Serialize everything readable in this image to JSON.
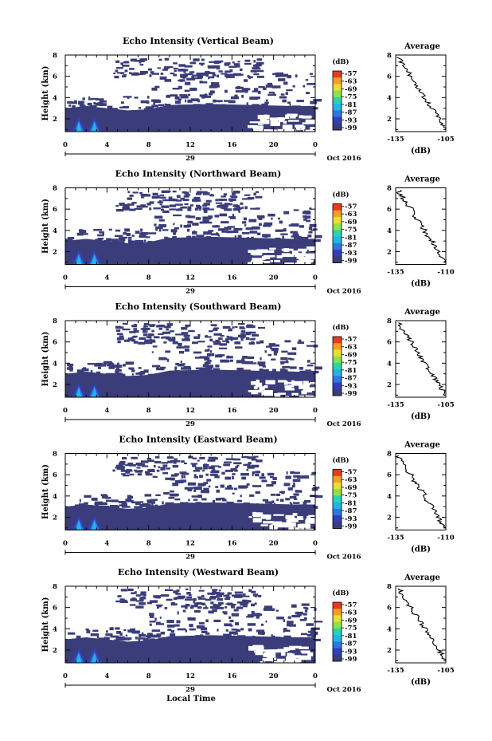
{
  "figure": {
    "xlabel": "Local Time",
    "date_label": "Oct 2016",
    "day_label": "29"
  },
  "colors": {
    "background_echo": "#3a3d7a",
    "scale": [
      "#3a3d7a",
      "#3140b8",
      "#2f78e0",
      "#1fb8e6",
      "#27d6b0",
      "#8fe04a",
      "#e8e030",
      "#f5a020",
      "#e83a20"
    ]
  },
  "chart_data": [
    {
      "type": "heatmap",
      "title": "Echo Intensity (Vertical Beam)",
      "ylabel": "Height (km)",
      "xlim": [
        0,
        24
      ],
      "ylim": [
        0.8,
        8
      ],
      "xticks": [
        "0",
        "4",
        "8",
        "12",
        "16",
        "20",
        "0"
      ],
      "yticks": [
        "2",
        "4",
        "6",
        "8"
      ],
      "colorbar": {
        "label": "(dB)",
        "ticks": [
          "-57",
          "-63",
          "-69",
          "-75",
          "-81",
          "-87",
          "-93",
          "-99"
        ]
      },
      "profile": {
        "title": "Average",
        "xlabel": "(dB)",
        "xticks": [
          "-135",
          "-105"
        ],
        "xlim": [
          -135,
          -105
        ],
        "yticks": [
          "2",
          "4",
          "6",
          "8"
        ]
      }
    },
    {
      "type": "heatmap",
      "title": "Echo Intensity (Northward Beam)",
      "ylabel": "Height (km)",
      "xlim": [
        0,
        24
      ],
      "ylim": [
        0.8,
        8
      ],
      "xticks": [
        "0",
        "4",
        "8",
        "12",
        "16",
        "20",
        "0"
      ],
      "yticks": [
        "2",
        "4",
        "6",
        "8"
      ],
      "colorbar": {
        "label": "(dB)",
        "ticks": [
          "-57",
          "-63",
          "-69",
          "-75",
          "-81",
          "-87",
          "-93",
          "-99"
        ]
      },
      "profile": {
        "title": "Average",
        "xlabel": "(dB)",
        "xticks": [
          "-135",
          "-110"
        ],
        "xlim": [
          -135,
          -110
        ],
        "yticks": [
          "2",
          "4",
          "6",
          "8"
        ]
      }
    },
    {
      "type": "heatmap",
      "title": "Echo Intensity (Southward Beam)",
      "ylabel": "Height (km)",
      "xlim": [
        0,
        24
      ],
      "ylim": [
        0.8,
        8
      ],
      "xticks": [
        "0",
        "4",
        "8",
        "12",
        "16",
        "20",
        "0"
      ],
      "yticks": [
        "2",
        "4",
        "6",
        "8"
      ],
      "colorbar": {
        "label": "(dB)",
        "ticks": [
          "-57",
          "-63",
          "-69",
          "-75",
          "-81",
          "-87",
          "-93",
          "-99"
        ]
      },
      "profile": {
        "title": "Average",
        "xlabel": "(dB)",
        "xticks": [
          "-135",
          "-105"
        ],
        "xlim": [
          -135,
          -105
        ],
        "yticks": [
          "2",
          "4",
          "6",
          "8"
        ]
      }
    },
    {
      "type": "heatmap",
      "title": "Echo Intensity (Eastward Beam)",
      "ylabel": "Height (km)",
      "xlim": [
        0,
        24
      ],
      "ylim": [
        0.8,
        8
      ],
      "xticks": [
        "0",
        "4",
        "8",
        "12",
        "16",
        "20",
        "0"
      ],
      "yticks": [
        "2",
        "4",
        "6",
        "8"
      ],
      "colorbar": {
        "label": "(dB)",
        "ticks": [
          "-57",
          "-63",
          "-69",
          "-75",
          "-81",
          "-87",
          "-93",
          "-99"
        ]
      },
      "profile": {
        "title": "Average",
        "xlabel": "(dB)",
        "xticks": [
          "-135",
          "-110"
        ],
        "xlim": [
          -135,
          -110
        ],
        "yticks": [
          "2",
          "4",
          "6",
          "8"
        ]
      }
    },
    {
      "type": "heatmap",
      "title": "Echo Intensity (Westward Beam)",
      "ylabel": "Height (km)",
      "xlim": [
        0,
        24
      ],
      "ylim": [
        0.8,
        8
      ],
      "xticks": [
        "0",
        "4",
        "8",
        "12",
        "16",
        "20",
        "0"
      ],
      "yticks": [
        "2",
        "4",
        "6",
        "8"
      ],
      "colorbar": {
        "label": "(dB)",
        "ticks": [
          "-57",
          "-63",
          "-69",
          "-75",
          "-81",
          "-87",
          "-93",
          "-99"
        ]
      },
      "profile": {
        "title": "Average",
        "xlabel": "(dB)",
        "xticks": [
          "-135",
          "-105"
        ],
        "xlim": [
          -135,
          -105
        ],
        "yticks": [
          "2",
          "4",
          "6",
          "8"
        ]
      }
    }
  ]
}
